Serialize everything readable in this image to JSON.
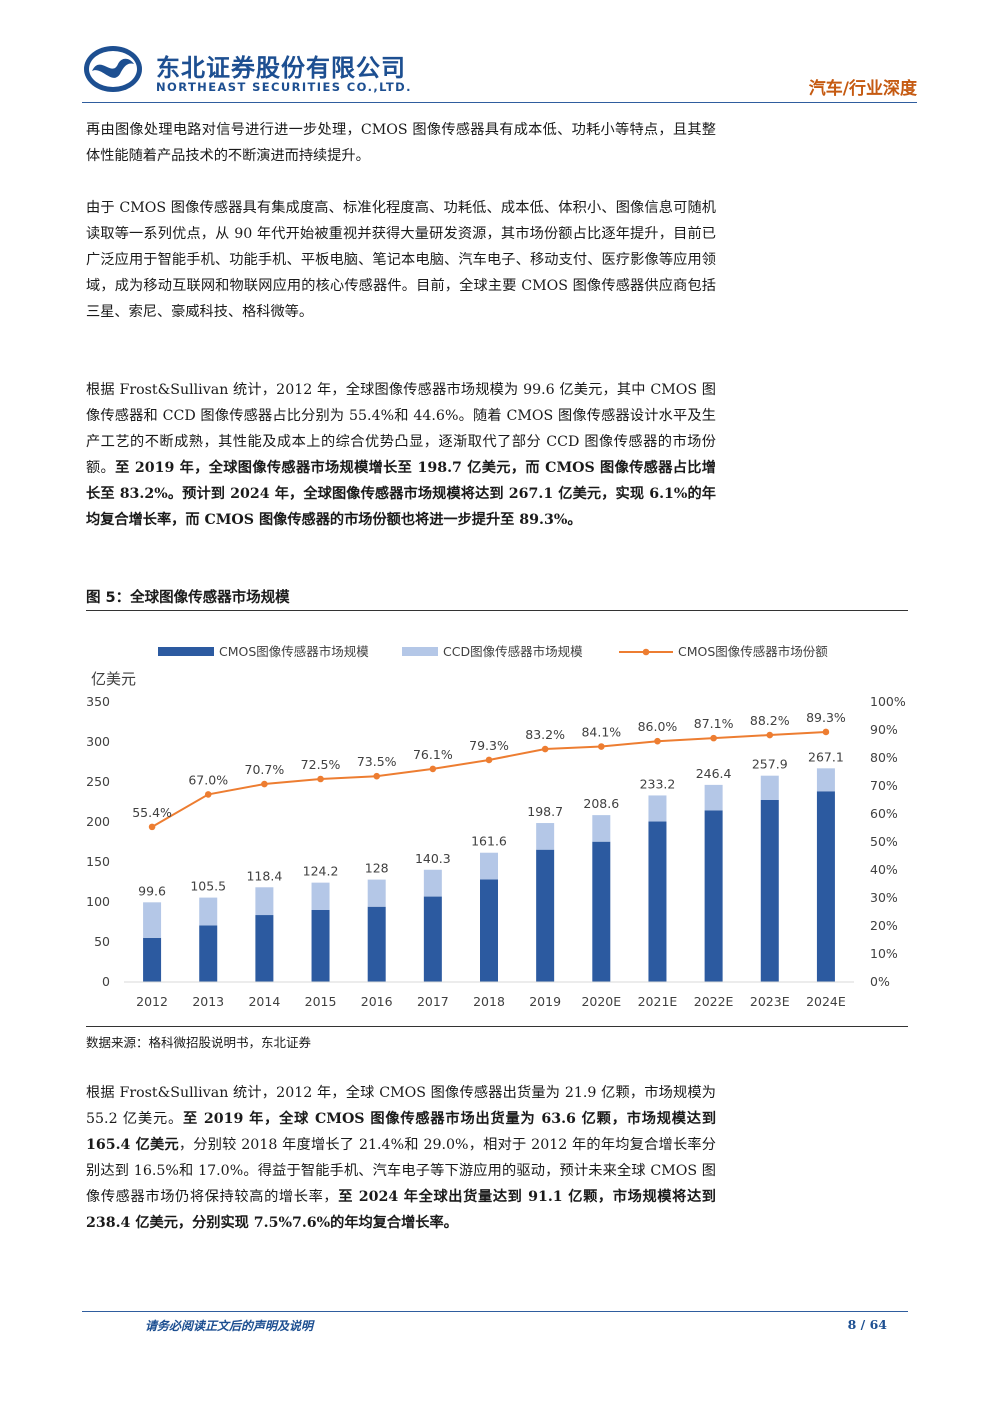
{
  "header": {
    "company_cn": "东北证券股份有限公司",
    "company_en": "NORTHEAST SECURITIES CO.,LTD.",
    "section": "汽车/行业深度"
  },
  "paragraphs": {
    "p1": "再由图像处理电路对信号进行进一步处理，CMOS 图像传感器具有成本低、功耗小等特点，且其整体性能随着产品技术的不断演进而持续提升。",
    "p2": "由于 CMOS 图像传感器具有集成度高、标准化程度高、功耗低、成本低、体积小、图像信息可随机读取等一系列优点，从 90 年代开始被重视并获得大量研发资源，其市场份额占比逐年提升，目前已广泛应用于智能手机、功能手机、平板电脑、笔记本电脑、汽车电子、移动支付、医疗影像等应用领域，成为移动互联网和物联网应用的核心传感器件。目前，全球主要 CMOS 图像传感器供应商包括三星、索尼、豪威科技、格科微等。",
    "p3_normal": "根据 Frost&Sullivan 统计，2012 年，全球图像传感器市场规模为 99.6 亿美元，其中 CMOS 图像传感器和 CCD 图像传感器占比分别为 55.4%和 44.6%。随着 CMOS 图像传感器设计水平及生产工艺的不断成熟，其性能及成本上的综合优势凸显，逐渐取代了部分 CCD 图像传感器的市场份额。",
    "p3_bold": "至 2019 年，全球图像传感器市场规模增长至 198.7 亿美元，而 CMOS 图像传感器占比增长至 83.2%。预计到 2024 年，全球图像传感器市场规模将达到 267.1 亿美元，实现 6.1%的年均复合增长率，而 CMOS 图像传感器的市场份额也将进一步提升至 89.3%。",
    "p4_a": "根据 Frost&Sullivan 统计，2012 年，全球 CMOS 图像传感器出货量为 21.9 亿颗，市场规模为 55.2 亿美元。",
    "p4_b": "至 2019 年，全球 CMOS 图像传感器市场出货量为 63.6 亿颗，市场规模达到 165.4 亿美元",
    "p4_c": "，分别较 2018 年度增长了 21.4%和 29.0%，相对于 2012 年的年均复合增长率分别达到 16.5%和 17.0%。得益于智能手机、汽车电子等下游应用的驱动，预计未来全球 CMOS 图像传感器市场仍将保持较高的增长率，",
    "p4_d": "至 2024 年全球出货量达到 91.1 亿颗，市场规模将达到 238.4 亿美元，分别实现 7.5%7.6%的年均复合增长率。"
  },
  "figure": {
    "title": "图 5：全球图像传感器市场规模",
    "source": "数据来源：格科微招股说明书，东北证券"
  },
  "chart_data": {
    "type": "bar",
    "stacked": true,
    "categories": [
      "2012",
      "2013",
      "2014",
      "2015",
      "2016",
      "2017",
      "2018",
      "2019",
      "2020E",
      "2021E",
      "2022E",
      "2023E",
      "2024E"
    ],
    "totals": [
      99.6,
      105.5,
      118.4,
      124.2,
      128,
      140.3,
      161.6,
      198.7,
      208.6,
      233.2,
      246.4,
      257.9,
      267.1
    ],
    "total_labels": [
      "99.6",
      "105.5",
      "118.4",
      "124.2",
      "128",
      "140.3",
      "161.6",
      "198.7",
      "208.6",
      "233.2",
      "246.4",
      "257.9",
      "267.1"
    ],
    "series": [
      {
        "name": "CMOS图像传感器市场规模",
        "type": "bar",
        "color": "#2c5aa0",
        "values": [
          55.2,
          70.7,
          83.7,
          90.0,
          94.1,
          106.8,
          128.2,
          165.4,
          175.4,
          200.6,
          214.6,
          227.5,
          238.4
        ]
      },
      {
        "name": "CCD图像传感器市场规模",
        "type": "bar",
        "color": "#b4c7e7",
        "values": [
          44.4,
          34.8,
          34.7,
          34.2,
          33.9,
          33.5,
          33.4,
          33.3,
          33.2,
          32.6,
          31.8,
          30.4,
          28.7
        ]
      },
      {
        "name": "CMOS图像传感器市场份额",
        "type": "line",
        "axis": "right",
        "color": "#ed7d31",
        "values": [
          55.4,
          67.0,
          70.7,
          72.5,
          73.5,
          76.1,
          79.3,
          83.2,
          84.1,
          86.0,
          87.1,
          88.2,
          89.3
        ],
        "labels": [
          "55.4%",
          "67.0%",
          "70.7%",
          "72.5%",
          "73.5%",
          "76.1%",
          "79.3%",
          "83.2%",
          "84.1%",
          "86.0%",
          "87.1%",
          "88.2%",
          "89.3%"
        ]
      }
    ],
    "ylabel": "亿美元",
    "ylim": [
      0,
      350
    ],
    "yticks": [
      "0",
      "50",
      "100",
      "150",
      "200",
      "250",
      "300",
      "350"
    ],
    "y2lim": [
      0,
      100
    ],
    "y2ticks": [
      "0%",
      "10%",
      "20%",
      "30%",
      "40%",
      "50%",
      "60%",
      "70%",
      "80%",
      "90%",
      "100%"
    ],
    "legend": "top",
    "grid": false
  },
  "footer": {
    "note": "请务必阅读正文后的声明及说明",
    "page": "8 / 64"
  }
}
